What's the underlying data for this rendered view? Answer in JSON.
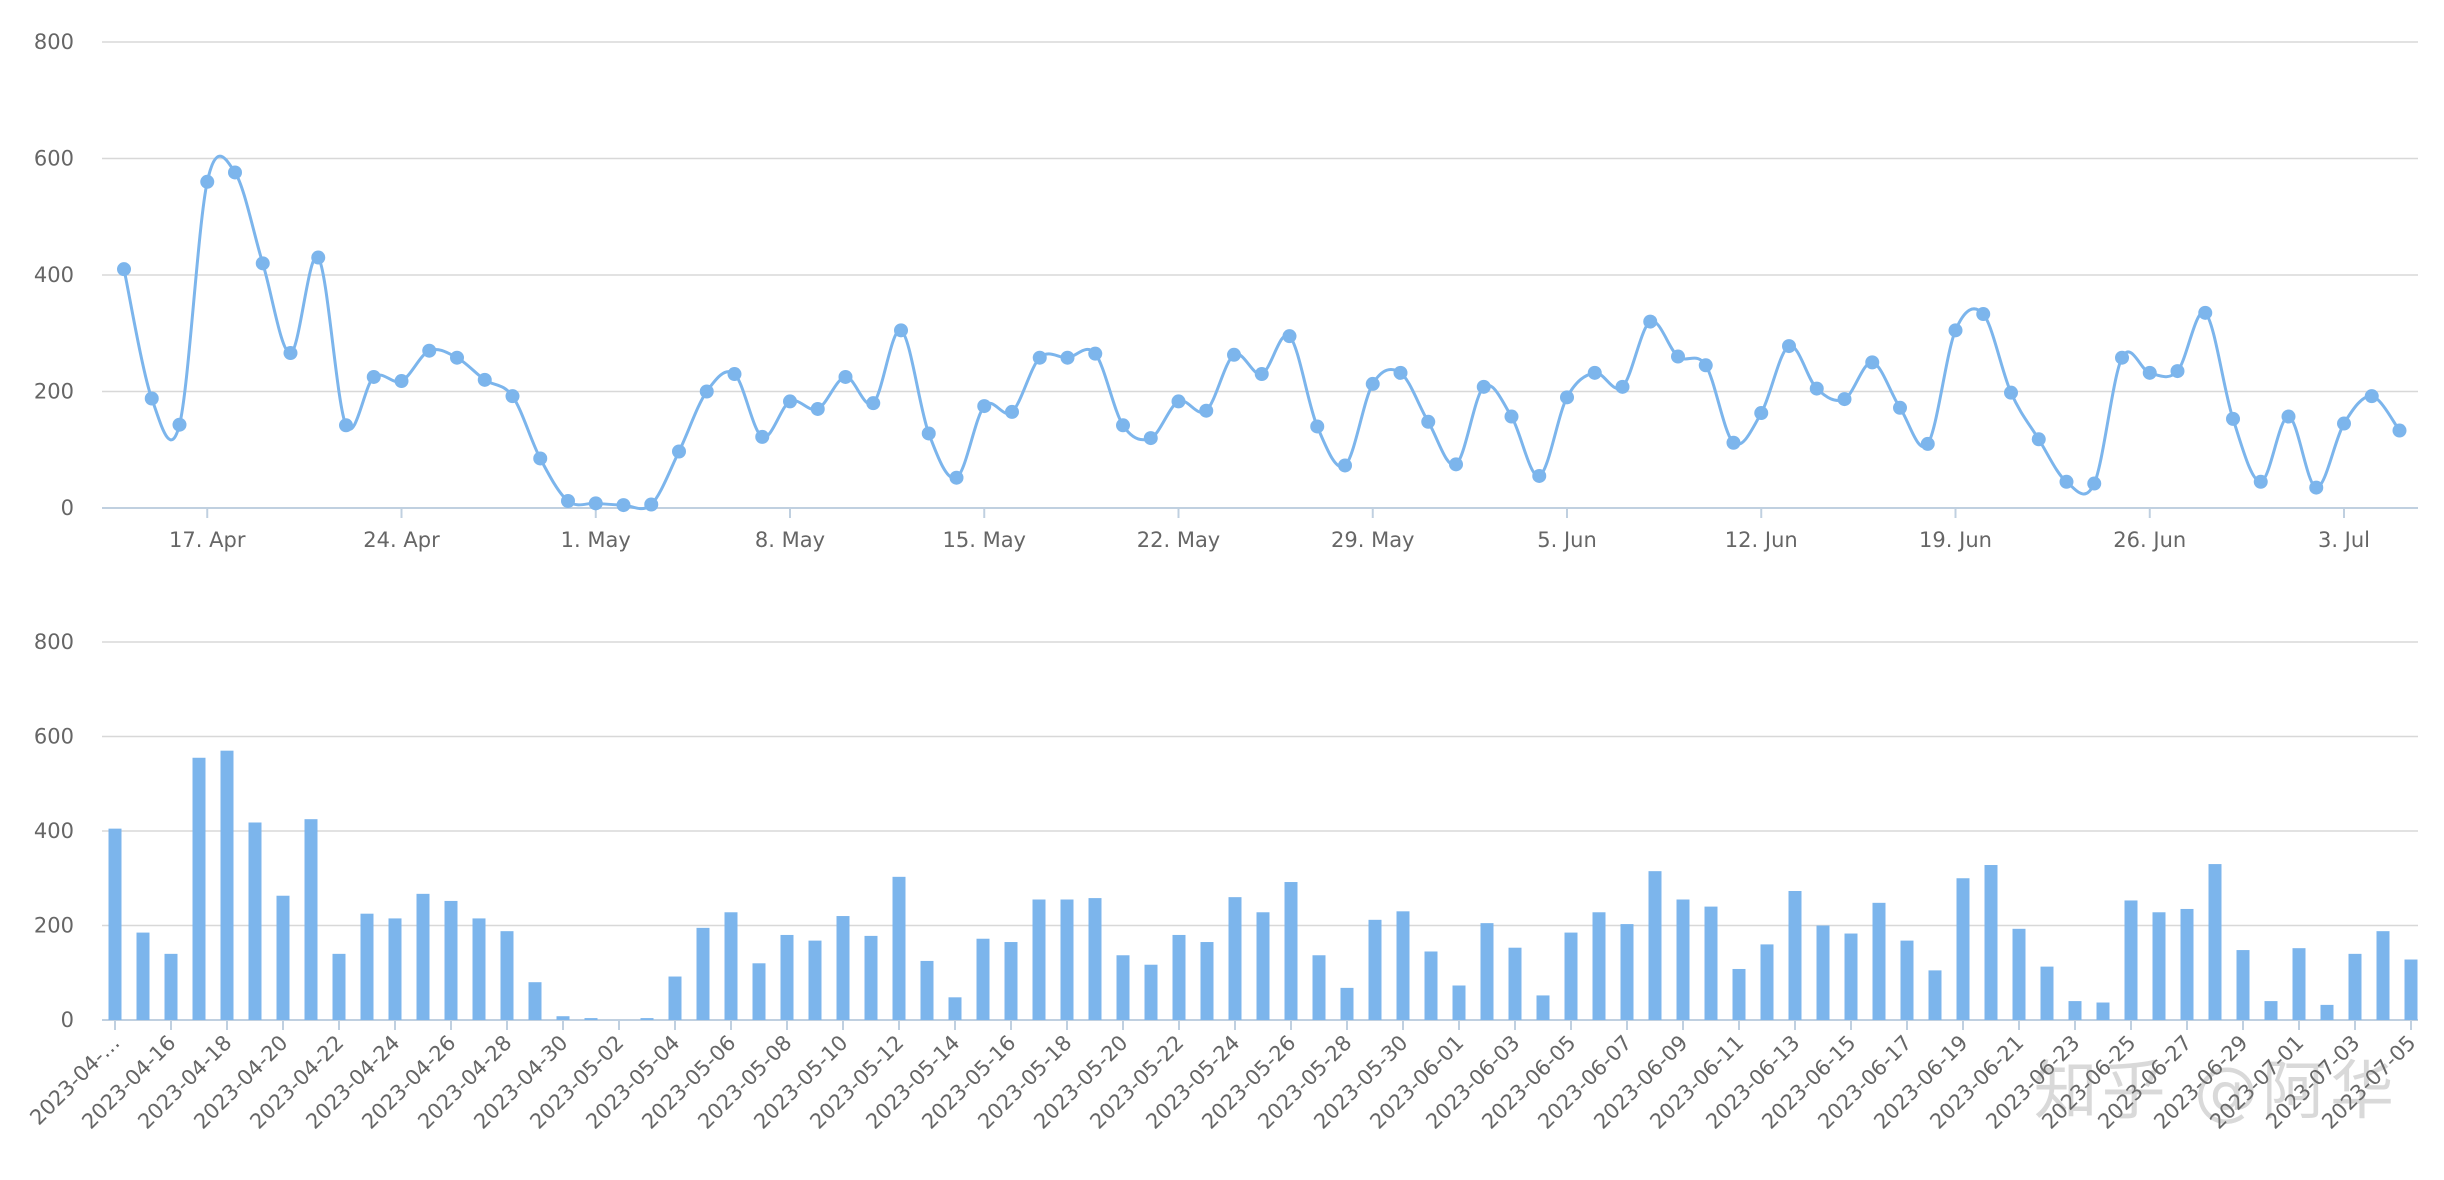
{
  "watermark": "知乎 @阿华",
  "colors": {
    "series": "#7cb5ec",
    "grid": "#d8d8d8",
    "axis": "#c0d0e0",
    "label": "#666666"
  },
  "chart_data": [
    {
      "type": "line",
      "x_type": "date",
      "start_date": "2023-04-14",
      "ylim": [
        0,
        800
      ],
      "yticks": [
        0,
        200,
        400,
        600,
        800
      ],
      "xtick_labels": [
        "17. Apr",
        "24. Apr",
        "1. May",
        "8. May",
        "15. May",
        "22. May",
        "29. May",
        "5. Jun",
        "12. Jun",
        "19. Jun",
        "26. Jun",
        "3. Jul"
      ],
      "grid": true,
      "values": [
        410,
        188,
        143,
        560,
        576,
        420,
        266,
        430,
        142,
        225,
        218,
        270,
        258,
        220,
        192,
        85,
        12,
        8,
        5,
        6,
        97,
        200,
        230,
        122,
        183,
        170,
        225,
        180,
        305,
        128,
        52,
        175,
        165,
        258,
        258,
        265,
        142,
        120,
        183,
        167,
        263,
        230,
        295,
        140,
        73,
        213,
        232,
        148,
        75,
        208,
        157,
        55,
        190,
        232,
        208,
        320,
        260,
        245,
        112,
        163,
        278,
        205,
        187,
        250,
        172,
        110,
        305,
        333,
        198,
        118,
        45,
        42,
        258,
        232,
        235,
        335,
        153,
        45,
        157,
        35,
        145,
        192,
        133
      ]
    },
    {
      "type": "bar",
      "ylim": [
        0,
        800
      ],
      "yticks": [
        0,
        200,
        400,
        600,
        800
      ],
      "grid": true,
      "category_labels": [
        "2023-04-…",
        "2023-04-16",
        "2023-04-18",
        "2023-04-20",
        "2023-04-22",
        "2023-04-24",
        "2023-04-26",
        "2023-04-28",
        "2023-04-30",
        "2023-05-02",
        "2023-05-04",
        "2023-05-06",
        "2023-05-08",
        "2023-05-10",
        "2023-05-12",
        "2023-05-14",
        "2023-05-16",
        "2023-05-18",
        "2023-05-20",
        "2023-05-22",
        "2023-05-24",
        "2023-05-26",
        "2023-05-28",
        "2023-05-30",
        "2023-06-01",
        "2023-06-03",
        "2023-06-05",
        "2023-06-07",
        "2023-06-09",
        "2023-06-11",
        "2023-06-13",
        "2023-06-15",
        "2023-06-17",
        "2023-06-19",
        "2023-06-21",
        "2023-06-23",
        "2023-06-25",
        "2023-06-27",
        "2023-06-29",
        "2023-07-01",
        "2023-07-03",
        "2023-07-05"
      ],
      "values": [
        405,
        185,
        140,
        555,
        570,
        418,
        263,
        425,
        140,
        225,
        215,
        267,
        252,
        215,
        188,
        80,
        8,
        4,
        0,
        4,
        92,
        195,
        228,
        120,
        180,
        168,
        220,
        178,
        303,
        125,
        48,
        172,
        165,
        255,
        255,
        258,
        137,
        117,
        180,
        165,
        260,
        228,
        292,
        137,
        68,
        212,
        230,
        145,
        73,
        205,
        153,
        52,
        185,
        228,
        203,
        315,
        255,
        240,
        108,
        160,
        273,
        200,
        183,
        248,
        168,
        105,
        300,
        328,
        193,
        113,
        40,
        37,
        253,
        228,
        235,
        330,
        148,
        40,
        152,
        32,
        140,
        188,
        128
      ]
    }
  ]
}
